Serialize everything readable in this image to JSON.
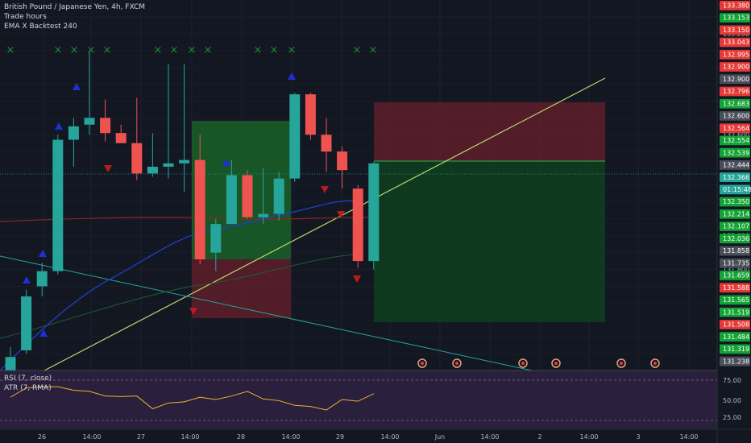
{
  "legend": {
    "symbol": "British Pound / Japanese Yen, 4h, FXCM",
    "trade_hours": "Trade hours",
    "ema": "EMA X Backtest 240",
    "rsi": "RSI (7, close)",
    "atr": "ATR (7, RMA)"
  },
  "colors": {
    "background": "#131722",
    "up": "#26a69a",
    "down": "#ef5350",
    "marker_up": "#1f2fd8",
    "marker_down": "#b71c1c",
    "x_marker": "#1e8c2e",
    "ema_fast": "#1e3fd0",
    "ema_slow": "#8c2424",
    "ema_mid": "#1f5e33",
    "trendline_up": "#b9d66d",
    "trendline_down": "#26a69a",
    "rsi_line": "#f0b429",
    "oscillator_bg": "#2a1f3d"
  },
  "chart_data": {
    "type": "candlestick",
    "title": "British Pound / Japanese Yen, 4h, FXCM",
    "ylim": [
      131.2,
      133.4
    ],
    "y_ticks": [
      131.8,
      131.9,
      132.0,
      132.6,
      133.2,
      133.3
    ],
    "x_ticks": [
      "26",
      "14:00",
      "27",
      "14:00",
      "28",
      "14:00",
      "29",
      "14:00",
      "Jun",
      "14:00",
      "2",
      "14:00",
      "3",
      "14:00"
    ],
    "candles": [
      {
        "o": 131.2,
        "h": 131.34,
        "l": 131.18,
        "c": 131.28
      },
      {
        "o": 131.32,
        "h": 131.68,
        "l": 131.3,
        "c": 131.64
      },
      {
        "o": 131.7,
        "h": 131.84,
        "l": 131.64,
        "c": 131.79
      },
      {
        "o": 131.79,
        "h": 132.6,
        "l": 131.77,
        "c": 132.57
      },
      {
        "o": 132.57,
        "h": 132.7,
        "l": 132.41,
        "c": 132.65
      },
      {
        "o": 132.66,
        "h": 133.1,
        "l": 132.6,
        "c": 132.7
      },
      {
        "o": 132.7,
        "h": 132.81,
        "l": 132.56,
        "c": 132.61
      },
      {
        "o": 132.61,
        "h": 132.66,
        "l": 132.55,
        "c": 132.55
      },
      {
        "o": 132.55,
        "h": 132.82,
        "l": 132.33,
        "c": 132.37
      },
      {
        "o": 132.37,
        "h": 132.61,
        "l": 132.35,
        "c": 132.41
      },
      {
        "o": 132.41,
        "h": 133.02,
        "l": 132.34,
        "c": 132.43
      },
      {
        "o": 132.43,
        "h": 133.02,
        "l": 132.26,
        "c": 132.45
      },
      {
        "o": 132.45,
        "h": 132.6,
        "l": 131.83,
        "c": 131.86
      },
      {
        "o": 131.9,
        "h": 132.1,
        "l": 131.79,
        "c": 132.07
      },
      {
        "o": 132.07,
        "h": 132.45,
        "l": 132.07,
        "c": 132.36
      },
      {
        "o": 132.36,
        "h": 132.39,
        "l": 132.1,
        "c": 132.11
      },
      {
        "o": 132.11,
        "h": 132.4,
        "l": 132.07,
        "c": 132.13
      },
      {
        "o": 132.13,
        "h": 132.38,
        "l": 132.09,
        "c": 132.34
      },
      {
        "o": 132.34,
        "h": 132.85,
        "l": 132.32,
        "c": 132.84
      },
      {
        "o": 132.84,
        "h": 132.85,
        "l": 132.57,
        "c": 132.6
      },
      {
        "o": 132.6,
        "h": 132.7,
        "l": 132.38,
        "c": 132.5
      },
      {
        "o": 132.5,
        "h": 132.53,
        "l": 132.28,
        "c": 132.39
      },
      {
        "o": 132.28,
        "h": 132.3,
        "l": 131.81,
        "c": 131.85
      },
      {
        "o": 131.85,
        "h": 132.44,
        "l": 131.8,
        "c": 132.43
      }
    ],
    "price_tags": [
      {
        "label": "133.380",
        "bg": "#e53935"
      },
      {
        "label": "133.153",
        "bg": "#13a334"
      },
      {
        "label": "133.150",
        "bg": "#e53935"
      },
      {
        "label": "133.043",
        "bg": "#e53935"
      },
      {
        "label": "132.995",
        "bg": "#e53935"
      },
      {
        "label": "132.900",
        "bg": "#e53935"
      },
      {
        "label": "132.900",
        "bg": "#4a4e58"
      },
      {
        "label": "132.796",
        "bg": "#e53935"
      },
      {
        "label": "132.683",
        "bg": "#13a334"
      },
      {
        "label": "132.600",
        "bg": "#4a4e58"
      },
      {
        "label": "132.564",
        "bg": "#e53935"
      },
      {
        "label": "132.554",
        "bg": "#13a334"
      },
      {
        "label": "132.539",
        "bg": "#13a334"
      },
      {
        "label": "132.444",
        "bg": "#4a4e58"
      },
      {
        "label": "132.366",
        "bg": "#26a69a"
      },
      {
        "label": "01:15:48",
        "bg": "#26a69a"
      },
      {
        "label": "132.350",
        "bg": "#13a334"
      },
      {
        "label": "132.214",
        "bg": "#13a334"
      },
      {
        "label": "132.107",
        "bg": "#13a334"
      },
      {
        "label": "132.036",
        "bg": "#13a334"
      },
      {
        "label": "131.858",
        "bg": "#4a4e58"
      },
      {
        "label": "131.735",
        "bg": "#4a4e58"
      },
      {
        "label": "131.659",
        "bg": "#13a334"
      },
      {
        "label": "131.588",
        "bg": "#e53935"
      },
      {
        "label": "131.565",
        "bg": "#13a334"
      },
      {
        "label": "131.519",
        "bg": "#13a334"
      },
      {
        "label": "131.508",
        "bg": "#e53935"
      },
      {
        "label": "131.484",
        "bg": "#13a334"
      },
      {
        "label": "131.319",
        "bg": "#13a334"
      },
      {
        "label": "131.238",
        "bg": "#4a4e58"
      }
    ],
    "oscillator": {
      "ticks": [
        "75.00",
        "50.00",
        "25.00"
      ],
      "rsi_values": [
        54,
        70,
        72,
        72,
        66,
        64,
        56,
        55,
        56,
        34,
        44,
        46,
        54,
        50,
        56,
        64,
        51,
        48,
        40,
        38,
        32,
        50,
        47,
        60
      ]
    }
  }
}
